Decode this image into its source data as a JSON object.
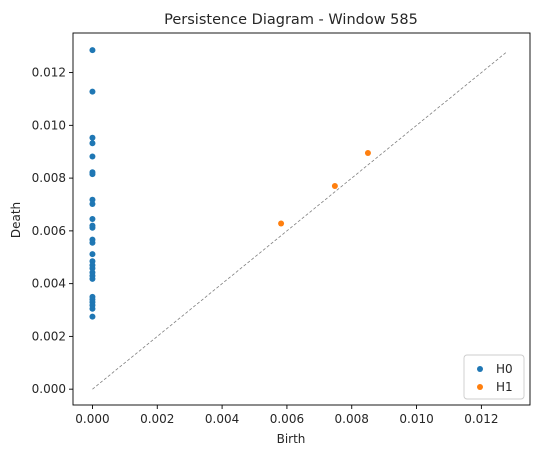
{
  "chart_data": {
    "type": "scatter",
    "title": "Persistence Diagram - Window 585",
    "xlabel": "Birth",
    "ylabel": "Death",
    "xlim": [
      -0.0006,
      0.0135
    ],
    "ylim": [
      -0.0006,
      0.0135
    ],
    "xticks": [
      0.0,
      0.002,
      0.004,
      0.006,
      0.008,
      0.01,
      0.012
    ],
    "yticks": [
      0.0,
      0.002,
      0.004,
      0.006,
      0.008,
      0.01,
      0.012
    ],
    "xtick_labels": [
      "0.000",
      "0.002",
      "0.004",
      "0.006",
      "0.008",
      "0.010",
      "0.012"
    ],
    "ytick_labels": [
      "0.000",
      "0.002",
      "0.004",
      "0.006",
      "0.008",
      "0.010",
      "0.012"
    ],
    "diagonal": {
      "from": [
        0.0,
        0.0
      ],
      "to": [
        0.0128,
        0.0128
      ],
      "style": "dashed",
      "color": "#808080"
    },
    "legend_position": "lower right",
    "series": [
      {
        "name": "H0",
        "color": "#1f77b4",
        "points": [
          [
            0.0,
            0.01285
          ],
          [
            0.0,
            0.01128
          ],
          [
            0.0,
            0.00953
          ],
          [
            0.0,
            0.00932
          ],
          [
            0.0,
            0.00882
          ],
          [
            0.0,
            0.00822
          ],
          [
            0.0,
            0.00815
          ],
          [
            0.0,
            0.00718
          ],
          [
            0.0,
            0.00702
          ],
          [
            0.0,
            0.00645
          ],
          [
            0.0,
            0.0062
          ],
          [
            0.0,
            0.00612
          ],
          [
            0.0,
            0.00567
          ],
          [
            0.0,
            0.00555
          ],
          [
            0.0,
            0.00512
          ],
          [
            0.0,
            0.00485
          ],
          [
            0.0,
            0.0047
          ],
          [
            0.0,
            0.00458
          ],
          [
            0.0,
            0.00442
          ],
          [
            0.0,
            0.0043
          ],
          [
            0.0,
            0.00418
          ],
          [
            0.0,
            0.0035
          ],
          [
            0.0,
            0.0034
          ],
          [
            0.0,
            0.0033
          ],
          [
            0.0,
            0.00318
          ],
          [
            0.0,
            0.00305
          ],
          [
            0.0,
            0.00275
          ]
        ]
      },
      {
        "name": "H1",
        "color": "#ff7f0e",
        "points": [
          [
            0.00582,
            0.00628
          ],
          [
            0.00748,
            0.0077
          ],
          [
            0.0085,
            0.00895
          ]
        ]
      }
    ]
  }
}
